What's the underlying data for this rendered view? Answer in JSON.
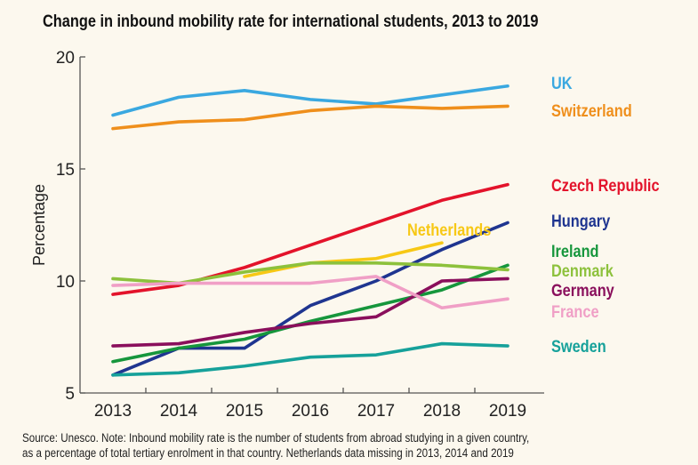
{
  "chart_data": {
    "type": "line",
    "title": "Change in inbound mobility rate for international students, 2013 to 2019",
    "ylabel": "Percentage",
    "xlabel": "",
    "x": [
      2013,
      2014,
      2015,
      2016,
      2017,
      2018,
      2019
    ],
    "ylim": [
      5,
      20
    ],
    "yticks": [
      5,
      10,
      15,
      20
    ],
    "grid": false,
    "legend": "direct labels at right end of lines",
    "series": [
      {
        "name": "UK",
        "color": "#3aa8e0",
        "values": [
          17.4,
          18.2,
          18.5,
          18.1,
          17.9,
          18.3,
          18.7
        ]
      },
      {
        "name": "Switzerland",
        "color": "#ef8f1c",
        "values": [
          16.8,
          17.1,
          17.2,
          17.6,
          17.8,
          17.7,
          17.8
        ]
      },
      {
        "name": "Czech Republic",
        "color": "#e3132b",
        "values": [
          9.4,
          9.8,
          10.6,
          11.6,
          12.6,
          13.6,
          14.3
        ]
      },
      {
        "name": "Hungary",
        "color": "#1f3590",
        "values": [
          5.8,
          7.0,
          7.0,
          8.9,
          10.0,
          11.4,
          12.6
        ]
      },
      {
        "name": "Netherlands",
        "color": "#f7c815",
        "values": [
          null,
          null,
          10.2,
          10.8,
          11.0,
          11.7,
          null
        ]
      },
      {
        "name": "Ireland",
        "color": "#16963c",
        "values": [
          6.4,
          7.0,
          7.4,
          8.2,
          8.9,
          9.6,
          10.7
        ]
      },
      {
        "name": "Denmark",
        "color": "#8dc13c",
        "values": [
          10.1,
          9.9,
          10.4,
          10.8,
          10.8,
          10.7,
          10.5
        ]
      },
      {
        "name": "Germany",
        "color": "#8a0f5c",
        "values": [
          7.1,
          7.2,
          7.7,
          8.1,
          8.4,
          10.0,
          10.1
        ]
      },
      {
        "name": "France",
        "color": "#f09fc6",
        "values": [
          9.8,
          9.9,
          9.9,
          9.9,
          10.2,
          8.8,
          9.2
        ]
      },
      {
        "name": "Sweden",
        "color": "#16a19a",
        "values": [
          5.8,
          5.9,
          6.2,
          6.6,
          6.7,
          7.2,
          7.1
        ]
      }
    ]
  },
  "note": [
    "Source: Unesco. Note: Inbound mobility rate is the number of students from abroad studying in a given country,",
    "as a percentage of total tertiary enrolment in that country. Netherlands data missing in 2013, 2014 and 2019"
  ]
}
